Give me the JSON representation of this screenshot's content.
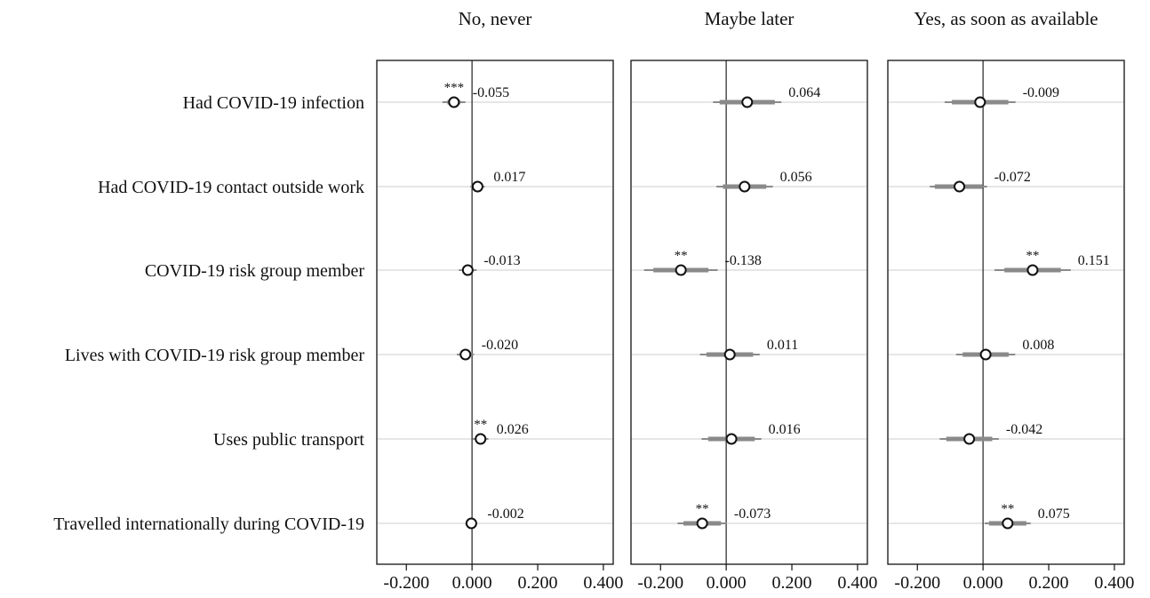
{
  "chart_data": {
    "type": "scatter",
    "panels": [
      {
        "title": "No, never",
        "estimates": [
          -0.055,
          0.017,
          -0.013,
          -0.02,
          0.026,
          -0.002
        ],
        "value_labels": [
          "-0.055",
          "0.017",
          "-0.013",
          "-0.020",
          "0.026",
          "-0.002"
        ],
        "significance": [
          "***",
          "",
          "",
          "",
          "**",
          ""
        ],
        "ci_inner": [
          [
            -0.075,
            -0.035
          ],
          [
            0.005,
            0.029
          ],
          [
            -0.027,
            0.001
          ],
          [
            -0.034,
            -0.006
          ],
          [
            0.012,
            0.04
          ],
          [
            -0.012,
            0.008
          ]
        ],
        "ci_outer": [
          [
            -0.09,
            -0.02
          ],
          [
            -0.005,
            0.039
          ],
          [
            -0.04,
            0.014
          ],
          [
            -0.046,
            0.006
          ],
          [
            0.002,
            0.05
          ],
          [
            -0.02,
            0.016
          ]
        ]
      },
      {
        "title": "Maybe later",
        "estimates": [
          0.064,
          0.056,
          -0.138,
          0.011,
          0.016,
          -0.073
        ],
        "value_labels": [
          "0.064",
          "0.056",
          "-0.138",
          "0.011",
          "0.016",
          "-0.073"
        ],
        "significance": [
          "",
          "",
          "**",
          "",
          "",
          "**"
        ],
        "ci_inner": [
          [
            -0.02,
            0.148
          ],
          [
            -0.01,
            0.122
          ],
          [
            -0.222,
            -0.054
          ],
          [
            -0.06,
            0.082
          ],
          [
            -0.055,
            0.087
          ],
          [
            -0.13,
            -0.016
          ]
        ],
        "ci_outer": [
          [
            -0.04,
            0.168
          ],
          [
            -0.03,
            0.142
          ],
          [
            -0.25,
            -0.026
          ],
          [
            -0.08,
            0.102
          ],
          [
            -0.075,
            0.107
          ],
          [
            -0.148,
            0.002
          ]
        ]
      },
      {
        "title": "Yes, as soon as available",
        "estimates": [
          -0.009,
          -0.072,
          0.151,
          0.008,
          -0.042,
          0.075
        ],
        "value_labels": [
          "-0.009",
          "-0.072",
          "0.151",
          "0.008",
          "-0.042",
          "0.075"
        ],
        "significance": [
          "",
          "",
          "**",
          "",
          "",
          "**"
        ],
        "ci_inner": [
          [
            -0.095,
            0.077
          ],
          [
            -0.147,
            -0.002
          ],
          [
            0.065,
            0.237
          ],
          [
            -0.062,
            0.078
          ],
          [
            -0.112,
            0.028
          ],
          [
            0.018,
            0.132
          ]
        ],
        "ci_outer": [
          [
            -0.117,
            0.099
          ],
          [
            -0.162,
            0.012
          ],
          [
            0.035,
            0.267
          ],
          [
            -0.082,
            0.098
          ],
          [
            -0.132,
            0.048
          ],
          [
            0.005,
            0.145
          ]
        ]
      }
    ],
    "categories": [
      "Had COVID-19 infection",
      "Had COVID-19 contact outside work",
      "COVID-19 risk group member",
      "Lives with COVID-19 risk group member",
      "Uses public transport",
      "Travelled internationally during COVID-19"
    ],
    "xticks": [
      -0.2,
      0.0,
      0.2,
      0.4
    ],
    "xtick_labels": [
      "-0.200",
      "0.000",
      "0.200",
      "0.400"
    ],
    "xlim": [
      -0.29,
      0.43
    ],
    "xlabel": "",
    "ylabel": "",
    "grid": "horizontal",
    "reference_line": 0,
    "colors": {
      "ci_bar": "#8a8a8a",
      "marker_fill": "#ffffff",
      "marker_edge": "#111111",
      "gridline": "#e6e6e6",
      "frame": "#111111"
    }
  }
}
